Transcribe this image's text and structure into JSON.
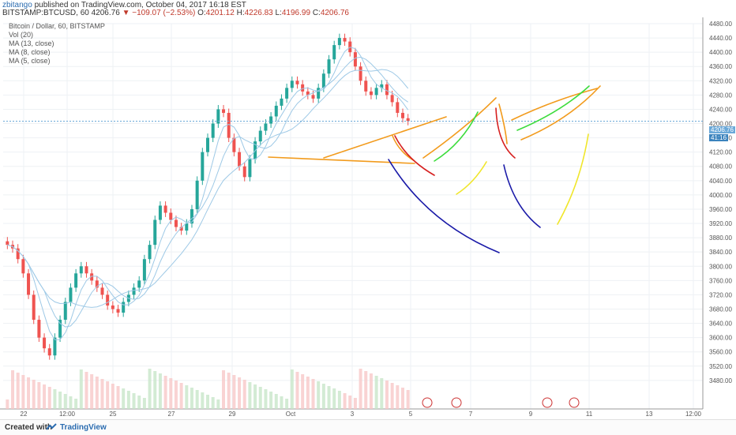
{
  "header": {
    "user": "zbitango",
    "published": "published on TradingView.com, October 04, 2017 16:18 EST",
    "symbol": "BITSTAMP:BTCUSD, 60",
    "last": "4206.76",
    "change": "−109.07 (−2.53%)",
    "ohlc_o_label": "O:",
    "ohlc_o": "4201.12",
    "ohlc_h_label": "H:",
    "ohlc_h": "4226.83",
    "ohlc_l_label": "L:",
    "ohlc_l": "4196.99",
    "ohlc_c_label": "C:",
    "ohlc_c": "4206.76"
  },
  "legend": {
    "title": "Bitcoin / Dollar, 60, BITSTAMP",
    "vol": "Vol (20)",
    "ma13": "MA (13, close)",
    "ma8": "MA (8, close)",
    "ma5": "MA (5, close)"
  },
  "price_label": {
    "price": "4206.76",
    "time": "41:16"
  },
  "footer": {
    "created": "Created with",
    "brand": "TradingView"
  },
  "colors": {
    "up": "#26a69a",
    "down": "#ef5350",
    "ma": "#9ec9e6",
    "annotation_orange": "#f29b1d",
    "annotation_green": "#3ddc3d",
    "annotation_yellow": "#f0e62b",
    "annotation_red": "#d62020",
    "annotation_blue": "#1a1aa8"
  },
  "chart_data": {
    "type": "candlestick",
    "ylim": [
      3400,
      4480
    ],
    "y_ticks": [
      3480,
      3520,
      3560,
      3600,
      3640,
      3680,
      3720,
      3760,
      3800,
      3840,
      3880,
      3920,
      3960,
      4000,
      4040,
      4080,
      4120,
      4160,
      4200,
      4240,
      4280,
      4320,
      4360,
      4400,
      4440,
      4480
    ],
    "x_ticks": [
      "22",
      "12:00",
      "25",
      "27",
      "29",
      "Oct",
      "3",
      "5",
      "7",
      "9",
      "11",
      "13",
      "12:00"
    ],
    "candles_close": [
      3860,
      3850,
      3820,
      3780,
      3720,
      3650,
      3600,
      3570,
      3550,
      3600,
      3650,
      3700,
      3740,
      3780,
      3800,
      3780,
      3760,
      3740,
      3720,
      3690,
      3680,
      3670,
      3700,
      3720,
      3740,
      3760,
      3820,
      3860,
      3930,
      3970,
      3950,
      3930,
      3910,
      3900,
      3920,
      3960,
      4040,
      4120,
      4160,
      4200,
      4240,
      4230,
      4160,
      4120,
      4080,
      4050,
      4100,
      4150,
      4180,
      4200,
      4220,
      4250,
      4270,
      4300,
      4320,
      4310,
      4290,
      4280,
      4270,
      4300,
      4340,
      4380,
      4420,
      4440,
      4430,
      4400,
      4360,
      4320,
      4290,
      4280,
      4300,
      4310,
      4280,
      4260,
      4230,
      4215,
      4207
    ],
    "annotations": [
      "orange trend lines",
      "green arcs",
      "yellow arcs",
      "red arcs",
      "blue arcs"
    ]
  }
}
